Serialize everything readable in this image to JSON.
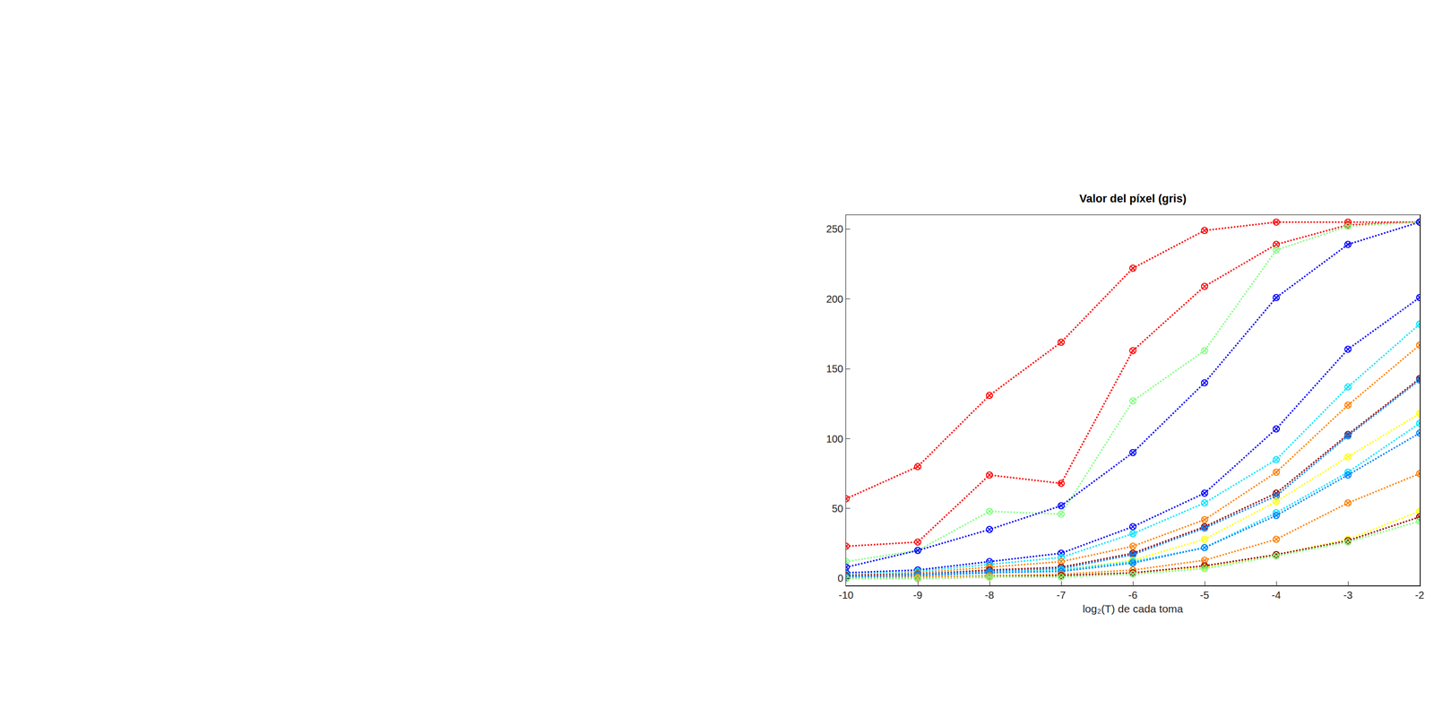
{
  "chart_data": {
    "type": "line",
    "title": "Valor del píxel (gris)",
    "x_label": "log₂(T) de cada toma",
    "x": [
      -10,
      -9,
      -8,
      -7,
      -6,
      -5,
      -4,
      -3,
      -2
    ],
    "xlim": [
      -10,
      -2
    ],
    "xticks": [
      -10,
      -9,
      -8,
      -7,
      -6,
      -5,
      -4,
      -3,
      -2
    ],
    "ylim": [
      -5,
      260
    ],
    "yticks": [
      0,
      50,
      100,
      150,
      200,
      250
    ],
    "grid": false,
    "marker": "circle-x-open",
    "line_style": "dot",
    "series": [
      {
        "color": "#ff0000",
        "values": [
          57,
          80,
          131,
          169,
          222,
          249,
          255,
          255,
          255
        ]
      },
      {
        "color": "#ff0000",
        "values": [
          23,
          26,
          74,
          68,
          163,
          209,
          239,
          253,
          255
        ]
      },
      {
        "color": "#80ff80",
        "values": [
          12,
          20,
          48,
          46,
          127,
          163,
          235,
          252,
          255
        ]
      },
      {
        "color": "#0000ff",
        "values": [
          8,
          20,
          35,
          52,
          90,
          140,
          201,
          239,
          255
        ]
      },
      {
        "color": "#0000ff",
        "values": [
          4,
          6,
          12,
          18,
          37,
          61,
          107,
          164,
          201
        ]
      },
      {
        "color": "#00e5ff",
        "values": [
          3,
          5,
          10,
          15,
          32,
          54,
          85,
          137,
          182
        ]
      },
      {
        "color": "#ff8000",
        "values": [
          2,
          4,
          8,
          12,
          23,
          42,
          76,
          124,
          167
        ]
      },
      {
        "color": "#990000",
        "values": [
          2,
          3,
          6,
          8,
          18,
          37,
          61,
          103,
          143
        ]
      },
      {
        "color": "#0080ff",
        "values": [
          1,
          3,
          5,
          7,
          17,
          36,
          59,
          102,
          142
        ]
      },
      {
        "color": "#ffff00",
        "values": [
          1,
          2,
          4,
          6,
          13,
          28,
          55,
          87,
          118
        ]
      },
      {
        "color": "#00e5ff",
        "values": [
          1,
          2,
          4,
          6,
          12,
          22,
          47,
          76,
          111
        ]
      },
      {
        "color": "#0080ff",
        "values": [
          1,
          2,
          4,
          5,
          11,
          22,
          45,
          74,
          104
        ]
      },
      {
        "color": "#ff8000",
        "values": [
          0,
          1,
          2,
          3,
          6,
          13,
          28,
          54,
          75
        ]
      },
      {
        "color": "#ffff00",
        "values": [
          0,
          0,
          1,
          2,
          4,
          8,
          17,
          28,
          48
        ]
      },
      {
        "color": "#990000",
        "values": [
          0,
          0,
          1,
          2,
          4,
          9,
          17,
          27,
          44
        ]
      },
      {
        "color": "#80ff80",
        "values": [
          0,
          0,
          1,
          1,
          3,
          7,
          16,
          26,
          41
        ]
      }
    ]
  }
}
